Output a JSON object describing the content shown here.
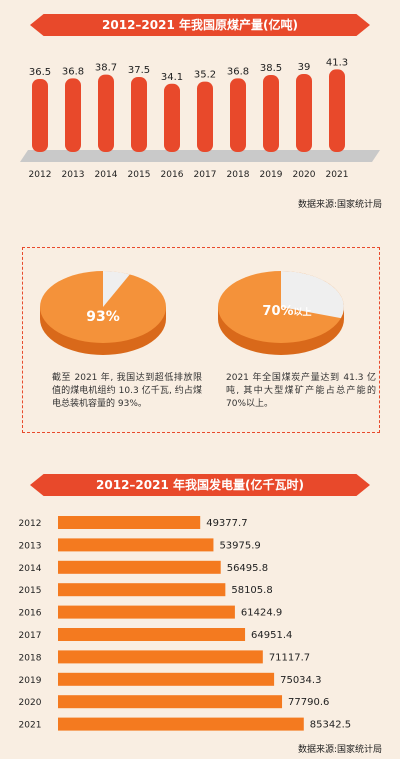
{
  "section1": {
    "title": "2012–2021 年我国原煤产量(亿吨)",
    "source": "数据来源:国家统计局"
  },
  "section2": {
    "pie1": {
      "label": "93%",
      "value": 93
    },
    "pie2": {
      "label": "70%",
      "suffix": "以上",
      "value": 70
    },
    "note1": "截至 2021 年, 我国达到超低排放限值的煤电机组约 10.3 亿千瓦, 约占煤电总装机容量的 93%。",
    "note2": "2021 年全国煤炭产量达到 41.3 亿吨, 其中大型煤矿产能占总产能的 70%以上。"
  },
  "section3": {
    "title": "2012–2021 年我国发电量(亿千瓦时)",
    "source": "数据来源:国家统计局"
  },
  "colors": {
    "red": "#e8492b",
    "orange": "#f47a1f",
    "pie": "#f4923a",
    "bg": "#f9eee2"
  },
  "chart_data": [
    {
      "type": "bar",
      "title": "2012–2021 年我国原煤产量(亿吨)",
      "categories": [
        "2012",
        "2013",
        "2014",
        "2015",
        "2016",
        "2017",
        "2018",
        "2019",
        "2020",
        "2021"
      ],
      "values": [
        36.5,
        36.8,
        38.7,
        37.5,
        34.1,
        35.2,
        36.8,
        38.5,
        39,
        41.3
      ],
      "value_labels": [
        "36.5",
        "36.8",
        "38.7",
        "37.5",
        "34.1",
        "35.2",
        "36.8",
        "38.5",
        "39",
        "41.3"
      ]
    },
    {
      "type": "bar",
      "orientation": "horizontal",
      "title": "2012–2021 年我国发电量(亿千瓦时)",
      "categories": [
        "2012",
        "2013",
        "2014",
        "2015",
        "2016",
        "2017",
        "2018",
        "2019",
        "2020",
        "2021"
      ],
      "values": [
        49377.7,
        53975.9,
        56495.8,
        58105.8,
        61424.9,
        64951.4,
        71117.7,
        75034.3,
        77790.6,
        85342.5
      ],
      "value_labels": [
        "49377.7",
        "53975.9",
        "56495.8",
        "58105.8",
        "61424.9",
        "64951.4",
        "71117.7",
        "75034.3",
        "77790.6",
        "85342.5"
      ]
    }
  ]
}
